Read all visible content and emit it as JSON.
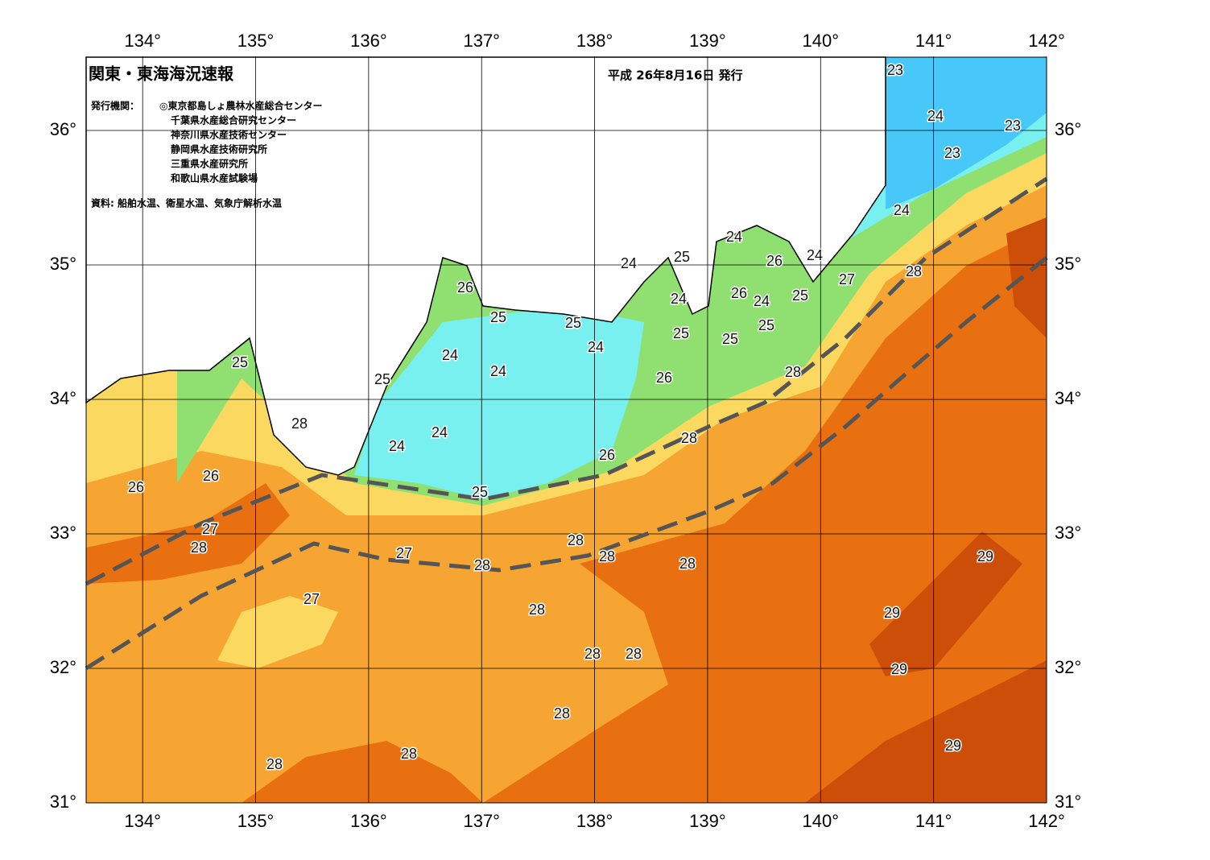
{
  "header": {
    "title": "関東・東海海況速報",
    "date": "平成 26年8月16日 発行"
  },
  "issuers": {
    "label": "発行機関：",
    "list": [
      "◎東京都島しょ農林水産総合センター",
      "千葉県水産総合研究センター",
      "神奈川県水産技術センター",
      "静岡県水産技術研究所",
      "三重県水産研究所",
      "和歌山県水産試験場"
    ]
  },
  "source": "資料: 船舶水温、衛星水温、気象庁解析水温",
  "map": {
    "lon_range": [
      133.5,
      142
    ],
    "lat_range": [
      31,
      36.55
    ],
    "lon_ticks": [
      {
        "value": 134,
        "label": "134°"
      },
      {
        "value": 135,
        "label": "135°"
      },
      {
        "value": 136,
        "label": "136°"
      },
      {
        "value": 137,
        "label": "137°"
      },
      {
        "value": 138,
        "label": "138°"
      },
      {
        "value": 139,
        "label": "139°"
      },
      {
        "value": 140,
        "label": "140°"
      },
      {
        "value": 141,
        "label": "141°"
      },
      {
        "value": 142,
        "label": "142°"
      }
    ],
    "lat_ticks": [
      {
        "value": 31,
        "label": "31°"
      },
      {
        "value": 32,
        "label": "32°"
      },
      {
        "value": 33,
        "label": "33°"
      },
      {
        "value": 34,
        "label": "34°"
      },
      {
        "value": 35,
        "label": "35°"
      },
      {
        "value": 36,
        "label": "36°"
      }
    ],
    "temperature_labels": [
      23,
      24,
      23,
      23,
      24,
      24,
      24,
      25,
      26,
      24,
      26,
      27,
      28,
      25,
      25,
      24,
      24,
      26,
      24,
      25,
      25,
      25,
      25,
      24,
      24,
      25,
      25,
      26,
      28,
      28,
      24,
      24,
      28,
      26,
      26,
      26,
      25,
      27,
      28,
      28,
      27,
      28,
      28,
      28,
      29,
      27,
      28,
      29,
      28,
      28,
      29,
      28,
      28,
      28,
      29
    ]
  }
}
